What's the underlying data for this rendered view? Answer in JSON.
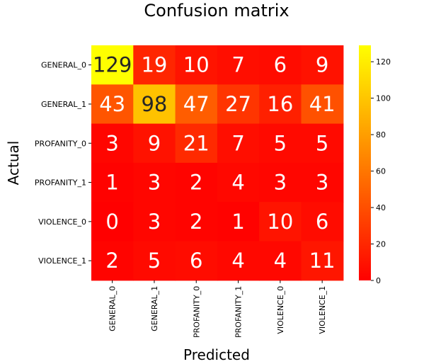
{
  "chart_data": {
    "type": "heatmap",
    "title": "Confusion matrix",
    "xlabel": "Predicted",
    "ylabel": "Actual",
    "row_labels": [
      "GENERAL_0",
      "GENERAL_1",
      "PROFANITY_0",
      "PROFANITY_1",
      "VIOLENCE_0",
      "VIOLENCE_1"
    ],
    "col_labels": [
      "GENERAL_0",
      "GENERAL_1",
      "PROFANITY_0",
      "PROFANITY_1",
      "VIOLENCE_0",
      "VIOLENCE_1"
    ],
    "values": [
      [
        129,
        19,
        10,
        7,
        6,
        9
      ],
      [
        43,
        98,
        47,
        27,
        16,
        41
      ],
      [
        3,
        9,
        21,
        7,
        5,
        5
      ],
      [
        1,
        3,
        2,
        4,
        3,
        3
      ],
      [
        0,
        3,
        2,
        1,
        10,
        6
      ],
      [
        2,
        5,
        6,
        4,
        4,
        11
      ]
    ],
    "colormap": "autumn",
    "color_low": "#ff0000",
    "color_high": "#ffff00",
    "vmin": 0,
    "vmax": 129,
    "colorbar_ticks": [
      "0",
      "20",
      "40",
      "60",
      "80",
      "100",
      "120"
    ],
    "colorbar_tick_values": [
      0,
      20,
      40,
      60,
      80,
      100,
      120
    ]
  }
}
